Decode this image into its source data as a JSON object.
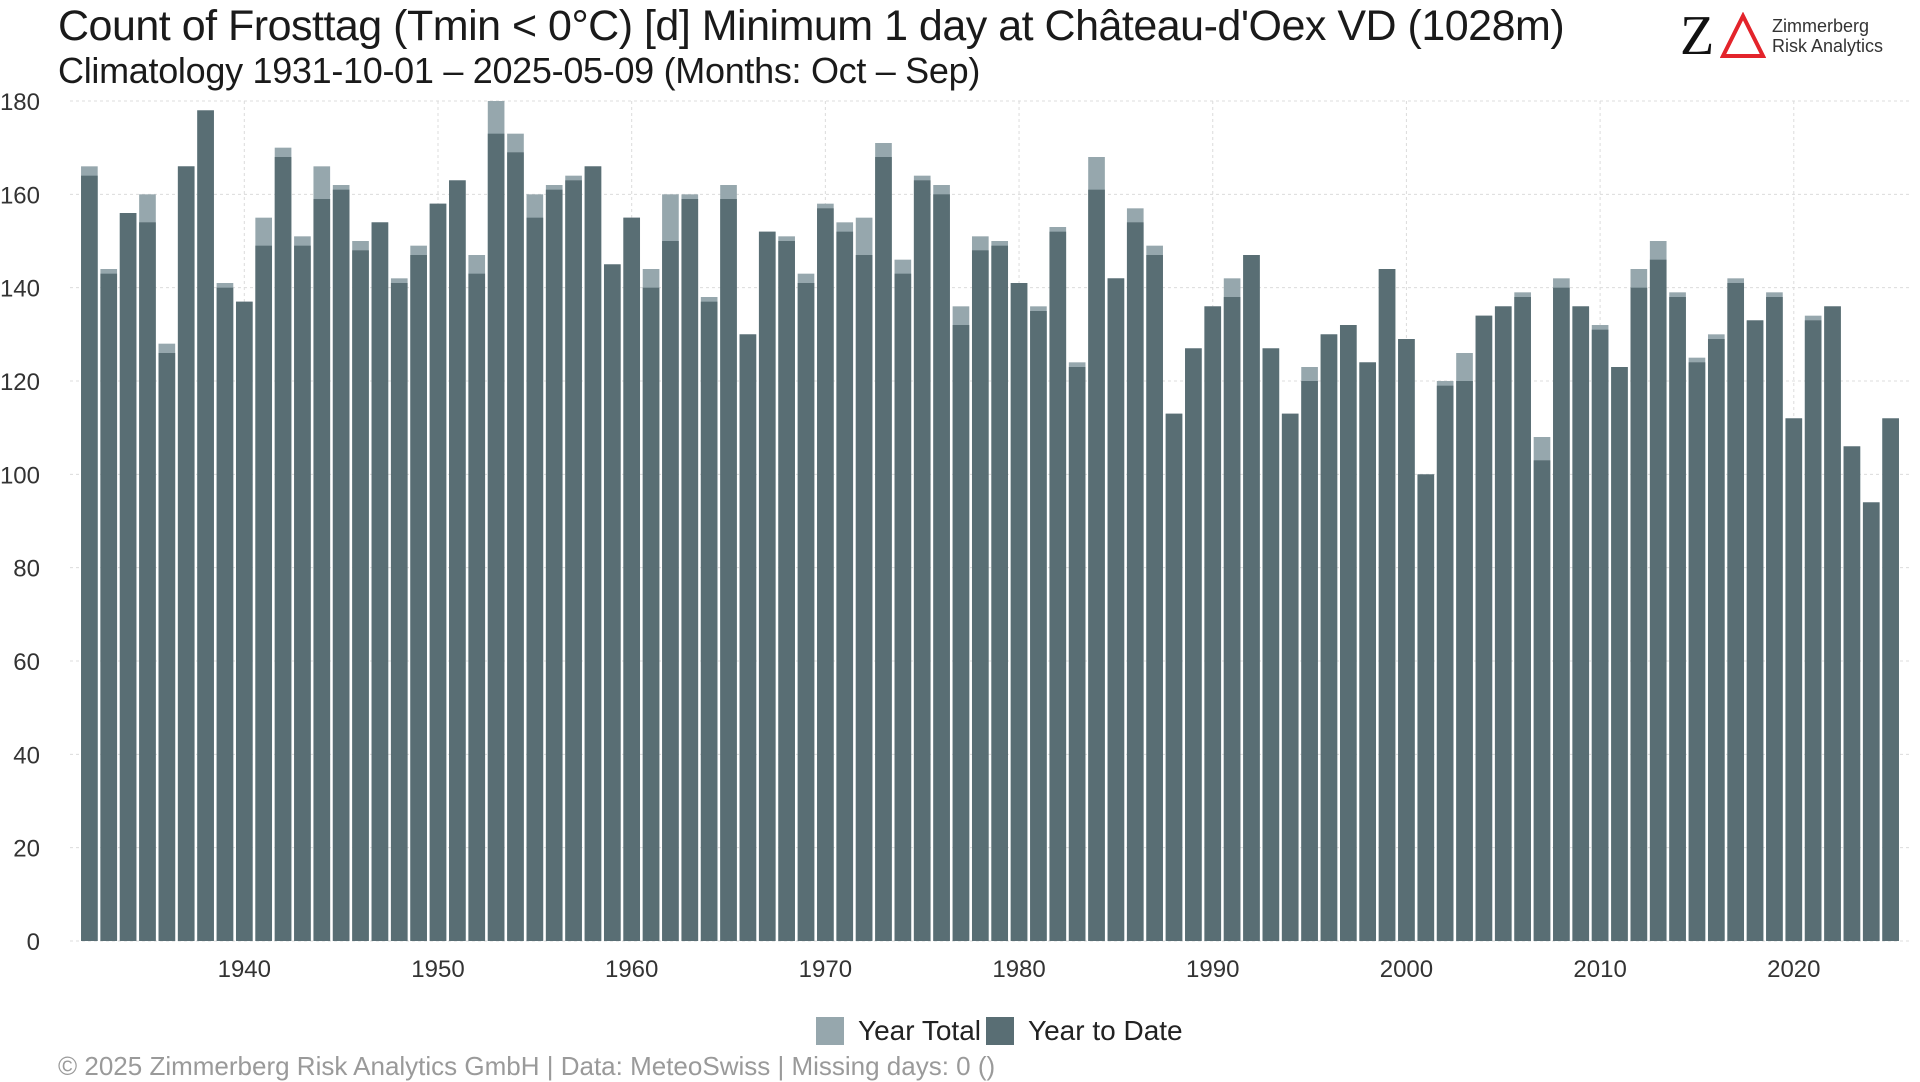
{
  "header": {
    "title": "Count of Frosttag (Tmin < 0°C) [d] Minimum 1 day at Château-d'Oex  VD (1028m)",
    "subtitle": "Climatology 1931-10-01 – 2025-05-09 (Months: Oct – Sep)"
  },
  "logo": {
    "mark": "Z",
    "line1": "Zimmerberg",
    "line2": "Risk Analytics",
    "accent_color": "#e3242b"
  },
  "footer": {
    "text": "©  2025 Zimmerberg Risk Analytics GmbH | Data: MeteoSwiss | Missing days: 0 ()"
  },
  "colors": {
    "year_total": "#96a7ad",
    "year_to_date": "#596e74",
    "grid": "#dcdcdc"
  },
  "chart_data": {
    "type": "bar",
    "title": "Count of Frosttag (Tmin < 0°C) [d] Minimum 1 day at Château-d'Oex  VD (1028m)",
    "subtitle": "Climatology 1931-10-01 – 2025-05-09 (Months: Oct – Sep)",
    "xlabel": "",
    "ylabel": "",
    "ylim": [
      0,
      180
    ],
    "yticks": [
      0,
      20,
      40,
      60,
      80,
      100,
      120,
      140,
      160,
      180
    ],
    "xticks": [
      1940,
      1950,
      1960,
      1970,
      1980,
      1990,
      2000,
      2010,
      2020
    ],
    "xlim": [
      1931,
      2025
    ],
    "grid": true,
    "legend_position": "bottom",
    "overlay": true,
    "x": [
      1932,
      1933,
      1934,
      1935,
      1936,
      1937,
      1938,
      1939,
      1940,
      1941,
      1942,
      1943,
      1944,
      1945,
      1946,
      1947,
      1948,
      1949,
      1950,
      1951,
      1952,
      1953,
      1954,
      1955,
      1956,
      1957,
      1958,
      1959,
      1960,
      1961,
      1962,
      1963,
      1964,
      1965,
      1966,
      1967,
      1968,
      1969,
      1970,
      1971,
      1972,
      1973,
      1974,
      1975,
      1976,
      1977,
      1978,
      1979,
      1980,
      1981,
      1982,
      1983,
      1984,
      1985,
      1986,
      1987,
      1988,
      1989,
      1990,
      1991,
      1992,
      1993,
      1994,
      1995,
      1996,
      1997,
      1998,
      1999,
      2000,
      2001,
      2002,
      2003,
      2004,
      2005,
      2006,
      2007,
      2008,
      2009,
      2010,
      2011,
      2012,
      2013,
      2014,
      2015,
      2016,
      2017,
      2018,
      2019,
      2020,
      2021,
      2022,
      2023,
      2024,
      2025
    ],
    "series": [
      {
        "name": "Year Total",
        "values": [
          166,
          144,
          156,
          160,
          128,
          166,
          178,
          141,
          137,
          155,
          170,
          151,
          166,
          162,
          150,
          154,
          142,
          149,
          158,
          163,
          147,
          180,
          173,
          160,
          162,
          164,
          166,
          145,
          155,
          144,
          160,
          160,
          138,
          162,
          130,
          152,
          151,
          143,
          158,
          154,
          155,
          171,
          146,
          164,
          162,
          136,
          151,
          150,
          141,
          136,
          153,
          124,
          168,
          142,
          157,
          149,
          113,
          127,
          136,
          142,
          147,
          127,
          113,
          123,
          130,
          132,
          124,
          144,
          129,
          100,
          120,
          126,
          134,
          136,
          139,
          108,
          142,
          136,
          132,
          123,
          144,
          150,
          139,
          125,
          130,
          142,
          133,
          139,
          112,
          134,
          136,
          106,
          94,
          112
        ]
      },
      {
        "name": "Year to Date",
        "values": [
          164,
          143,
          156,
          154,
          126,
          166,
          178,
          140,
          137,
          149,
          168,
          149,
          159,
          161,
          148,
          154,
          141,
          147,
          158,
          163,
          143,
          173,
          169,
          155,
          161,
          163,
          166,
          145,
          155,
          140,
          150,
          159,
          137,
          159,
          130,
          152,
          150,
          141,
          157,
          152,
          147,
          168,
          143,
          163,
          160,
          132,
          148,
          149,
          141,
          135,
          152,
          123,
          161,
          142,
          154,
          147,
          113,
          127,
          136,
          138,
          147,
          127,
          113,
          120,
          130,
          132,
          124,
          144,
          129,
          100,
          119,
          120,
          134,
          136,
          138,
          103,
          140,
          136,
          131,
          123,
          140,
          146,
          138,
          124,
          129,
          141,
          133,
          138,
          112,
          133,
          136,
          106,
          94,
          112
        ]
      }
    ]
  }
}
